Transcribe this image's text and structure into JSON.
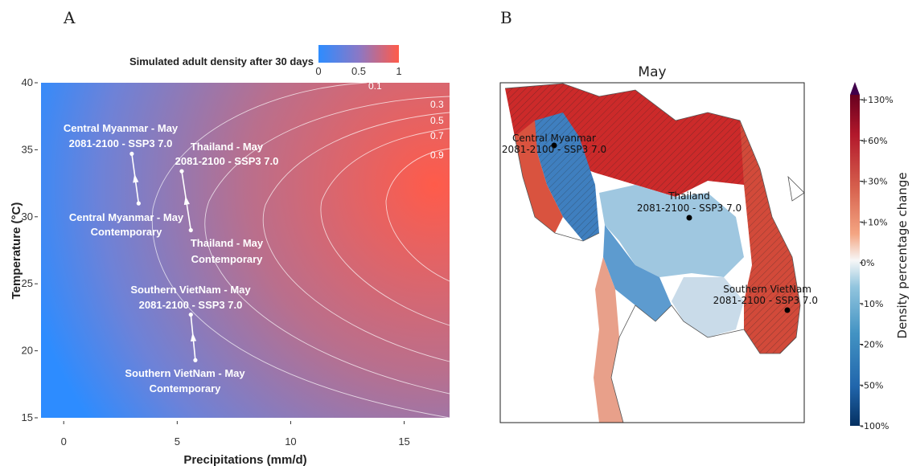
{
  "panel_a": {
    "letter": "A",
    "colorbar": {
      "title": "Simulated adult density after 30 days",
      "ticks": [
        "0",
        "0.5",
        "1"
      ],
      "colors": [
        "#2d8cff",
        "#8a78c6",
        "#ff5b4a"
      ]
    },
    "contour_labels": [
      "0.1",
      "0.3",
      "0.5",
      "0.7",
      "0.9"
    ],
    "annotations": [
      {
        "id": "cm_future_1",
        "text": "Central Myanmar - May"
      },
      {
        "id": "cm_future_2",
        "text": "2081-2100 - SSP3 7.0"
      },
      {
        "id": "cm_cont_1",
        "text": "Central Myanmar - May"
      },
      {
        "id": "cm_cont_2",
        "text": "Contemporary"
      },
      {
        "id": "th_future_1",
        "text": "Thailand - May"
      },
      {
        "id": "th_future_2",
        "text": "2081-2100 - SSP3 7.0"
      },
      {
        "id": "th_cont_1",
        "text": "Thailand - May"
      },
      {
        "id": "th_cont_2",
        "text": "Contemporary"
      },
      {
        "id": "sv_future_1",
        "text": "Southern VietNam - May"
      },
      {
        "id": "sv_future_2",
        "text": "2081-2100 - SSP3 7.0"
      },
      {
        "id": "sv_cont_1",
        "text": "Southern VietNam - May"
      },
      {
        "id": "sv_cont_2",
        "text": "Contemporary"
      }
    ]
  },
  "panel_b": {
    "letter": "B",
    "title": "May",
    "colorbar": {
      "title": "Density percentage change",
      "ticks": [
        "+130%",
        "+60%",
        "+30%",
        "+10%",
        "0%",
        "-10%",
        "-20%",
        "-50%",
        "-100%"
      ]
    },
    "sites": [
      {
        "name": "Central Myanmar",
        "period": "2081-2100 - SSP3 7.0"
      },
      {
        "name": "Thailand",
        "period": "2081-2100 - SSP3 7.0"
      },
      {
        "name": "Southern VietNam",
        "period": "2081-2100 - SSP3 7.0"
      }
    ]
  },
  "chart_data": [
    {
      "type": "heatmap",
      "title": "",
      "xlabel": "Precipitations (mm/d)",
      "ylabel": "Temperature (°C)",
      "xlim": [
        -1,
        17
      ],
      "ylim": [
        15,
        40
      ],
      "xticks": [
        0,
        5,
        10,
        15
      ],
      "yticks": [
        15,
        20,
        25,
        30,
        35,
        40
      ],
      "colorbar_label": "Simulated adult density after 30 days",
      "color_range": [
        0,
        1
      ],
      "contour_levels": [
        0.1,
        0.3,
        0.5,
        0.7,
        0.9
      ],
      "trajectories": [
        {
          "name": "Central Myanmar - May",
          "contemporary": {
            "x": 3.3,
            "y": 31.0
          },
          "future_2081_2100_ssp3_7_0": {
            "x": 3.0,
            "y": 34.7
          }
        },
        {
          "name": "Thailand - May",
          "contemporary": {
            "x": 5.6,
            "y": 29.0
          },
          "future_2081_2100_ssp3_7_0": {
            "x": 5.2,
            "y": 33.4
          }
        },
        {
          "name": "Southern VietNam - May",
          "contemporary": {
            "x": 5.8,
            "y": 19.3
          },
          "future_2081_2100_ssp3_7_0": {
            "x": 5.6,
            "y": 22.7
          }
        }
      ]
    },
    {
      "type": "heatmap",
      "title": "May",
      "colorbar_label": "Density percentage change",
      "colorbar_ticks": [
        "+130%",
        "+60%",
        "+30%",
        "+10%",
        "0%",
        "-10%",
        "-20%",
        "-50%",
        "-100%"
      ],
      "sites": [
        {
          "name": "Central Myanmar",
          "period": "2081-2100 - SSP3 7.0"
        },
        {
          "name": "Thailand",
          "period": "2081-2100 - SSP3 7.0"
        },
        {
          "name": "Southern VietNam",
          "period": "2081-2100 - SSP3 7.0"
        }
      ]
    }
  ]
}
